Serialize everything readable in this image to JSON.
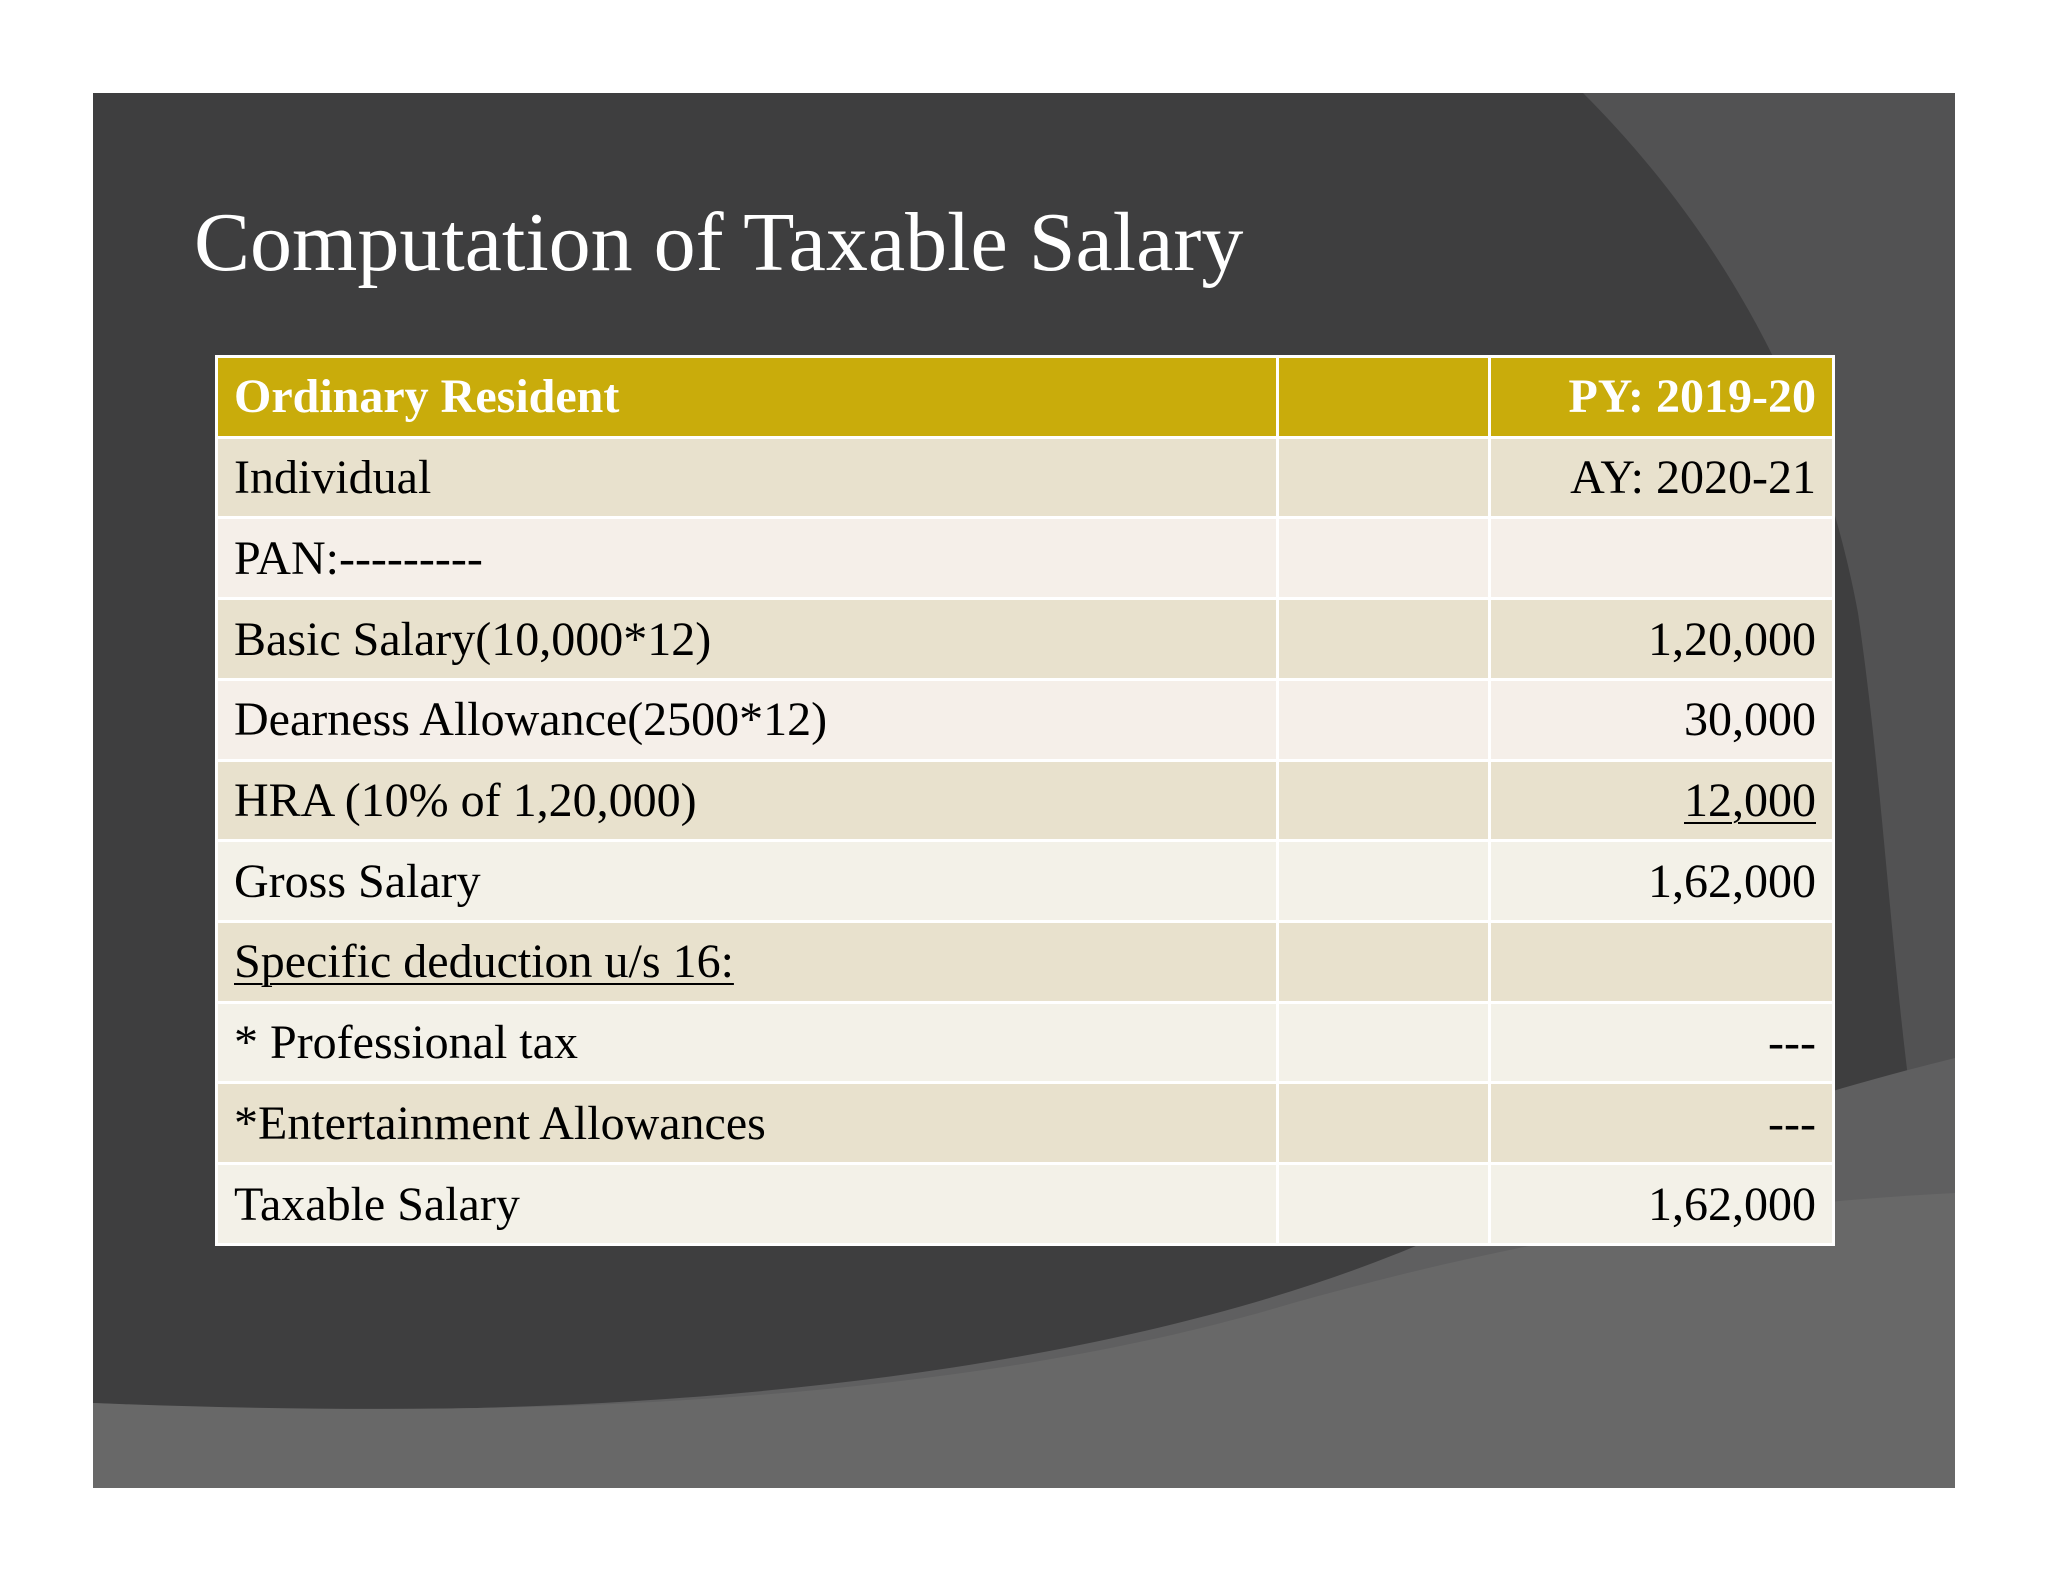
{
  "slide": {
    "title": "Computation of Taxable Salary",
    "colors": {
      "background_dark": "#3e3e3f",
      "header_gold": "#c9ac0b",
      "row_shade_a": "#e8e1cd",
      "row_shade_b": "#f5efe9"
    }
  },
  "table": {
    "header": {
      "label": "Ordinary Resident",
      "middle": "",
      "amount": "PY: 2019-20"
    },
    "rows": [
      {
        "label": "Individual",
        "middle": "",
        "amount": "AY: 2020-21"
      },
      {
        "label": "PAN:---------",
        "middle": "",
        "amount": ""
      },
      {
        "label": "Basic Salary(10,000*12)",
        "middle": "",
        "amount": "1,20,000"
      },
      {
        "label": "Dearness Allowance(2500*12)",
        "middle": "",
        "amount": "30,000"
      },
      {
        "label": "HRA (10% of 1,20,000)",
        "middle": "",
        "amount": "12,000"
      },
      {
        "label": "Gross Salary",
        "middle": "",
        "amount": "1,62,000"
      },
      {
        "label": "Specific deduction u/s 16:",
        "middle": "",
        "amount": ""
      },
      {
        "label": "* Professional tax",
        "middle": "",
        "amount": "---"
      },
      {
        "label": "*Entertainment Allowances",
        "middle": "",
        "amount": "---"
      },
      {
        "label": "Taxable Salary",
        "middle": "",
        "amount": "1,62,000"
      }
    ]
  }
}
